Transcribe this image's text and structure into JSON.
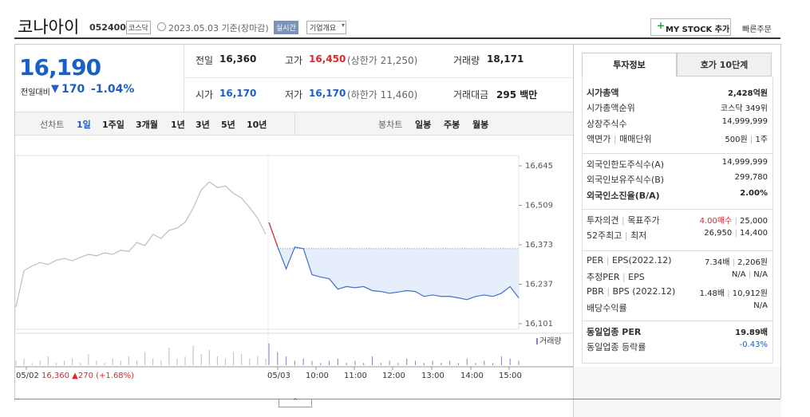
{
  "stock": {
    "name": "코나아이",
    "code": "052400",
    "market": "코스닥",
    "date": "2023.05.03 기준(장마감)",
    "realtime": "실시간",
    "overview": "기업개요",
    "mystock": "MY STOCK 추가",
    "quick_order": "빠른주문"
  },
  "summary": {
    "price": "16,190",
    "change_label": "전일대비",
    "change": "170",
    "change_rate": "-1.04%",
    "items": [
      {
        "label": "전일",
        "value": "16,360",
        "color": "#222"
      },
      {
        "label": "고가",
        "value": "16,450",
        "note": "(상한가 21,250)",
        "color": "#e0262b"
      },
      {
        "label": "거래량",
        "value": "18,171",
        "color": "#222"
      },
      {
        "label": "시가",
        "value": "16,170",
        "color": "#1a5fc8"
      },
      {
        "label": "저가",
        "value": "16,170",
        "note": "(하한가 11,460)",
        "color": "#1a5fc8"
      },
      {
        "label": "거래대금",
        "value": "295 백만",
        "color": "#222"
      }
    ]
  },
  "tabs": {
    "line_label": "선차트",
    "periods": [
      "1일",
      "1주일",
      "3개월",
      "1년",
      "3년",
      "5년",
      "10년"
    ],
    "candle_label": "봉차트",
    "candles": [
      "일봉",
      "주봉",
      "월봉"
    ]
  },
  "chart": {
    "type": "line",
    "ylim": [
      16101,
      16645
    ],
    "yticks": [
      {
        "value": 16645,
        "label": "16,645"
      },
      {
        "value": 16509,
        "label": "16,509"
      },
      {
        "value": 16373,
        "label": "16,373"
      },
      {
        "value": 16237,
        "label": "16,237"
      },
      {
        "value": 16101,
        "label": "16,101"
      }
    ],
    "reference_line": 16360,
    "series": [
      {
        "color": "#bdbdbd",
        "values": [
          16159,
          16284,
          16300,
          16312,
          16305,
          16320,
          16326,
          16318,
          16330,
          16340,
          16335,
          16345,
          16340,
          16354,
          16350,
          16381,
          16370,
          16409,
          16395,
          16423,
          16430,
          16451,
          16500,
          16562,
          16590,
          16570,
          16576,
          16550,
          16534,
          16501,
          16465,
          16409
        ],
        "volume": [
          2,
          3,
          1,
          2,
          4,
          1,
          2,
          3,
          1,
          5,
          2,
          1,
          3,
          2,
          4,
          2,
          6,
          3,
          2,
          8,
          3,
          4,
          9,
          5,
          7,
          4,
          3,
          6,
          5,
          3,
          4,
          3
        ]
      },
      {
        "color": "#3f6fd0",
        "open_color": "#e0262b",
        "fill": "#e6eefb",
        "values": [
          16450,
          16367,
          16290,
          16365,
          16360,
          16270,
          16262,
          16256,
          16220,
          16229,
          16225,
          16229,
          16215,
          16212,
          16206,
          16210,
          16215,
          16212,
          16195,
          16200,
          16195,
          16195,
          16190,
          16184,
          16195,
          16200,
          16195,
          16206,
          16229,
          16190
        ],
        "volume": [
          10,
          6,
          4,
          2,
          3,
          2,
          1,
          2,
          3,
          1,
          2,
          1,
          4,
          1,
          2,
          1,
          3,
          2,
          1,
          2,
          1,
          2,
          1,
          3,
          1,
          2,
          1,
          4,
          3,
          2
        ]
      }
    ],
    "volume_lim": [
      0,
      12
    ],
    "volume_label": "거래량",
    "xlabels": [
      "05/02",
      "05/03",
      "10:00",
      "11:00",
      "12:00",
      "13:00",
      "14:00",
      "15:00"
    ],
    "prev_info": "16,360 ▲270 (+1.68%)"
  },
  "sidebar": {
    "tabs": [
      "투자정보",
      "호가 10단계"
    ],
    "groups": [
      [
        {
          "label": [
            "시가총액"
          ],
          "value": [
            "2,428억원"
          ],
          "bold": true
        },
        {
          "label": [
            "시가총액순위"
          ],
          "value": [
            "코스닥 349위"
          ]
        },
        {
          "label": [
            "상장주식수"
          ],
          "value": [
            "14,999,999"
          ]
        },
        {
          "label": [
            "액면가",
            "매매단위"
          ],
          "value": [
            "500원",
            "1주"
          ]
        }
      ],
      [
        {
          "label": [
            "외국인한도주식수(A)"
          ],
          "value": [
            "14,999,999"
          ]
        },
        {
          "label": [
            "외국인보유주식수(B)"
          ],
          "value": [
            "299,780"
          ]
        },
        {
          "label": [
            "외국인소진율(B/A)"
          ],
          "value": [
            "2.00%"
          ],
          "bold": true
        }
      ],
      [
        {
          "label": [
            "투자의견",
            "목표주가"
          ],
          "value": [
            "4.00매수",
            "25,000"
          ],
          "color": "#e0262b"
        },
        {
          "label": [
            "52주최고",
            "최저"
          ],
          "value": [
            "26,950",
            "14,400"
          ]
        }
      ],
      [
        {
          "label": [
            "PER",
            "EPS(2022.12)"
          ],
          "value": [
            "7.34배",
            "2,206원"
          ]
        },
        {
          "label": [
            "추정PER",
            "EPS"
          ],
          "value": [
            "N/A",
            "N/A"
          ]
        },
        {
          "label": [
            "PBR",
            "BPS (2022.12)"
          ],
          "value": [
            "1.48배",
            "10,912원"
          ]
        },
        {
          "label": [
            "배당수익률"
          ],
          "value": [
            "N/A"
          ]
        }
      ],
      [
        {
          "label": [
            "동일업종 PER"
          ],
          "value": [
            "19.89배"
          ],
          "bold": true
        },
        {
          "label": [
            "동일업종 등락률"
          ],
          "value": [
            "-0.43%"
          ],
          "color": "#1a5fc8"
        }
      ]
    ]
  }
}
